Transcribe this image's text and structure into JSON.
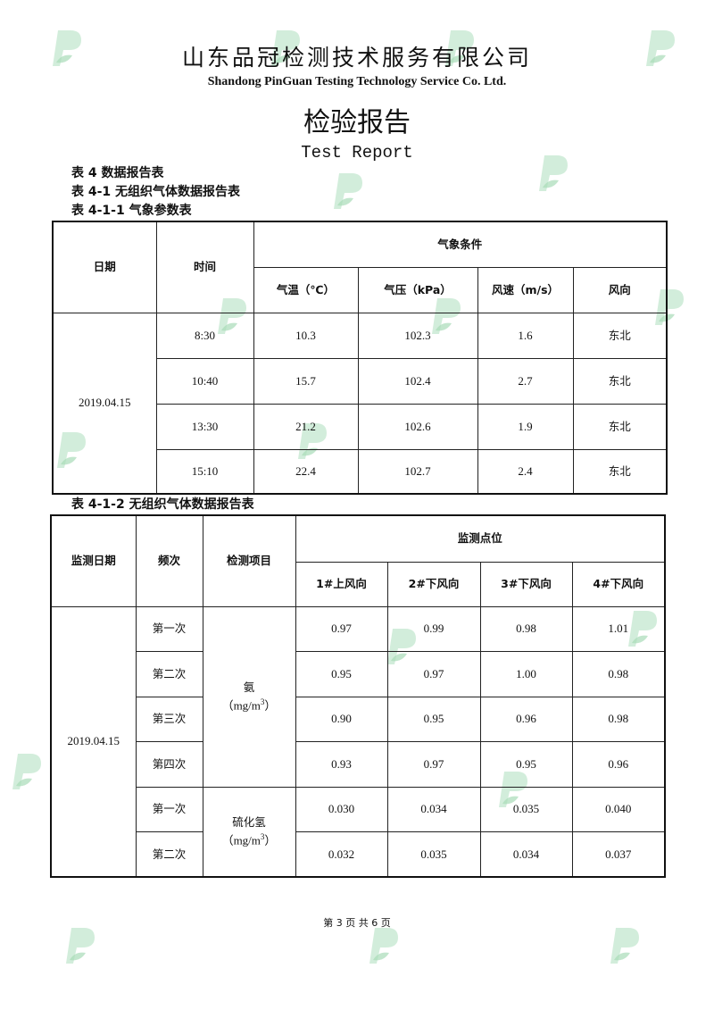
{
  "header": {
    "company_cn": "山东品冠检测技术服务有限公司",
    "company_en": "Shandong PinGuan Testing Technology Service Co. Ltd.",
    "title_cn": "检验报告",
    "title_en": "Test Report",
    "watermark": "P"
  },
  "captions": {
    "table4": "表 4 数据报告表",
    "table4_1": "表  4-1 无组织气体数据报告表",
    "table4_1_1": "表  4-1-1 气象参数表",
    "table4_1_2": "表  4-1-2 无组织气体数据报告表"
  },
  "weather": {
    "headers": {
      "date": "日期",
      "time": "时间",
      "group": "气象条件",
      "temp": "气温（℃）",
      "pressure": "气压（kPa）",
      "wind_speed": "风速（m/s）",
      "wind_dir": "风向"
    },
    "date": "2019.04.15",
    "rows": [
      {
        "time": "8:30",
        "temp": "10.3",
        "pressure": "102.3",
        "wind_speed": "1.6",
        "wind_dir": "东北"
      },
      {
        "time": "10:40",
        "temp": "15.7",
        "pressure": "102.4",
        "wind_speed": "2.7",
        "wind_dir": "东北"
      },
      {
        "time": "13:30",
        "temp": "21.2",
        "pressure": "102.6",
        "wind_speed": "1.9",
        "wind_dir": "东北"
      },
      {
        "time": "15:10",
        "temp": "22.4",
        "pressure": "102.7",
        "wind_speed": "2.4",
        "wind_dir": "东北"
      }
    ]
  },
  "gas": {
    "headers": {
      "date": "监测日期",
      "freq": "频次",
      "item": "检测项目",
      "group": "监测点位",
      "p1": "1#上风向",
      "p2": "2#下风向",
      "p3": "3#下风向",
      "p4": "4#下风向"
    },
    "date": "2019.04.15",
    "items": [
      {
        "name": "氨",
        "unit": "（mg/m",
        "sup": "3",
        "close": "）"
      },
      {
        "name": "硫化氢",
        "unit": "（mg/m",
        "sup": "3",
        "close": "）"
      }
    ],
    "rows": [
      {
        "freq": "第一次",
        "v": [
          "0.97",
          "0.99",
          "0.98",
          "1.01"
        ]
      },
      {
        "freq": "第二次",
        "v": [
          "0.95",
          "0.97",
          "1.00",
          "0.98"
        ]
      },
      {
        "freq": "第三次",
        "v": [
          "0.90",
          "0.95",
          "0.96",
          "0.98"
        ]
      },
      {
        "freq": "第四次",
        "v": [
          "0.93",
          "0.97",
          "0.95",
          "0.96"
        ]
      },
      {
        "freq": "第一次",
        "v": [
          "0.030",
          "0.034",
          "0.035",
          "0.040"
        ]
      },
      {
        "freq": "第二次",
        "v": [
          "0.032",
          "0.035",
          "0.034",
          "0.037"
        ]
      }
    ]
  },
  "footer": {
    "page": "第 3 页  共 6 页"
  }
}
